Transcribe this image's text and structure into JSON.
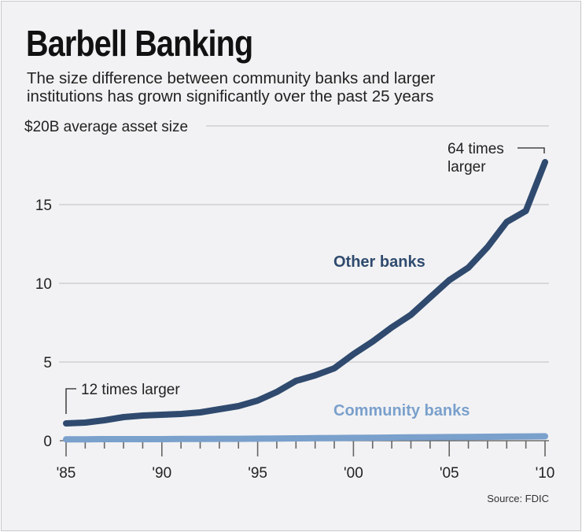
{
  "header": {
    "title": "Barbell Banking",
    "subtitle_line1": "The size difference between community banks and larger",
    "subtitle_line2": "institutions has grown significantly over the past 25 years"
  },
  "axis": {
    "y_unit_label": "$20B average asset size",
    "y_ticks": [
      "0",
      "5",
      "10",
      "15"
    ],
    "x_ticks": [
      "'85",
      "'90",
      "'95",
      "'00",
      "'05",
      "'10"
    ]
  },
  "annotations": {
    "start": "12 times larger",
    "end_line1": "64 times",
    "end_line2": "larger"
  },
  "series_labels": {
    "other": "Other banks",
    "community": "Community banks"
  },
  "source": "Source: FDIC",
  "colors": {
    "other_banks": "#2f4a6e",
    "community_banks": "#7aa0cc",
    "background": "#f2f2f4",
    "gridline": "#c9c9cc"
  },
  "chart_data": {
    "type": "line",
    "title": "Barbell Banking",
    "subtitle": "The size difference between community banks and larger institutions has grown significantly over the past 25 years",
    "xlabel": "",
    "ylabel": "Average asset size ($B)",
    "ylim": [
      0,
      20
    ],
    "x": [
      1985,
      1986,
      1987,
      1988,
      1989,
      1990,
      1991,
      1992,
      1993,
      1994,
      1995,
      1996,
      1997,
      1998,
      1999,
      2000,
      2001,
      2002,
      2003,
      2004,
      2005,
      2006,
      2007,
      2008,
      2009,
      2010
    ],
    "x_tick_labels": [
      "'85",
      "'90",
      "'95",
      "'00",
      "'05",
      "'10"
    ],
    "y_tick_labels": [
      "0",
      "5",
      "10",
      "15",
      "$20B average asset size"
    ],
    "grid": true,
    "series": [
      {
        "name": "Other banks",
        "values": [
          1.1,
          1.15,
          1.3,
          1.5,
          1.6,
          1.65,
          1.7,
          1.8,
          2.0,
          2.2,
          2.55,
          3.1,
          3.8,
          4.15,
          4.6,
          5.5,
          6.3,
          7.2,
          8.0,
          9.1,
          10.2,
          11.0,
          12.3,
          13.9,
          14.6,
          17.7
        ]
      },
      {
        "name": "Community banks",
        "values": [
          0.09,
          0.09,
          0.1,
          0.1,
          0.1,
          0.1,
          0.11,
          0.11,
          0.12,
          0.12,
          0.13,
          0.14,
          0.15,
          0.16,
          0.17,
          0.18,
          0.19,
          0.2,
          0.21,
          0.22,
          0.23,
          0.24,
          0.25,
          0.26,
          0.27,
          0.28
        ]
      }
    ],
    "annotations": [
      {
        "x": 1985,
        "text": "12 times larger"
      },
      {
        "x": 2010,
        "text": "64 times larger"
      }
    ],
    "source": "Source: FDIC",
    "legend": "inline labels"
  }
}
